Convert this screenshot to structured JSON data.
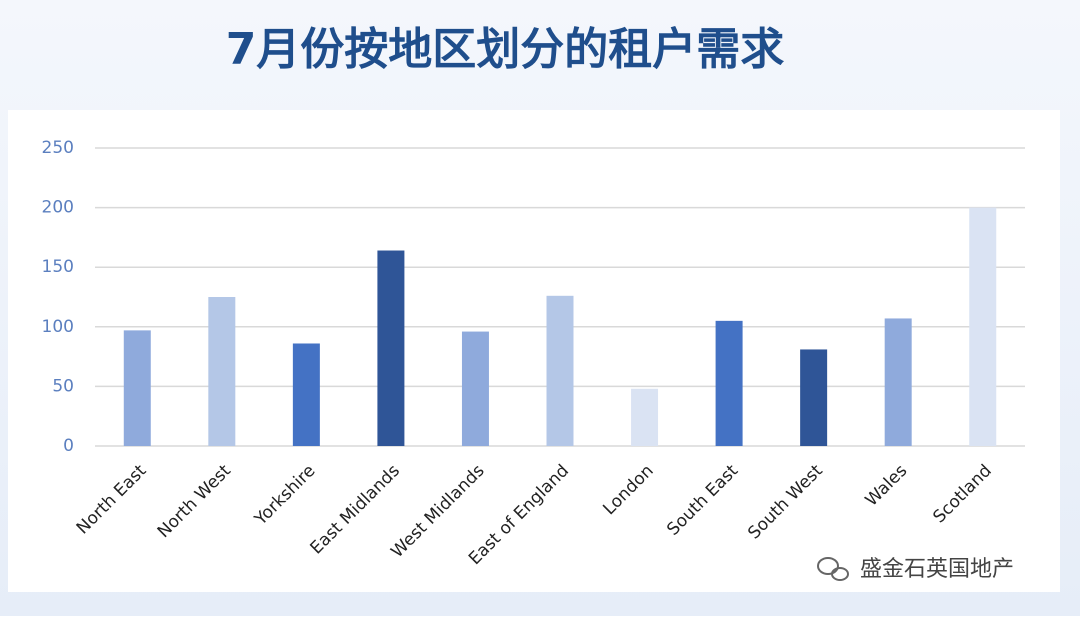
{
  "chart_data": {
    "type": "bar",
    "title": "7月份按地区划分的租户需求",
    "categories": [
      "North East",
      "North West",
      "Yorkshire",
      "East Midlands",
      "West Midlands",
      "East of England",
      "London",
      "South East",
      "South West",
      "Wales",
      "Scotland"
    ],
    "values": [
      97,
      125,
      86,
      164,
      96,
      126,
      48,
      105,
      81,
      107,
      200
    ],
    "colors": [
      "#8faadc",
      "#b4c7e7",
      "#4472c4",
      "#2f5597",
      "#8faadc",
      "#b4c7e7",
      "#dae3f3",
      "#4472c4",
      "#2f5597",
      "#8faadc",
      "#dae3f3"
    ],
    "ylim": [
      0,
      250
    ],
    "yticks": [
      0,
      50,
      100,
      150,
      200,
      250
    ],
    "grid": true
  },
  "watermark": "盛金石英国地产"
}
